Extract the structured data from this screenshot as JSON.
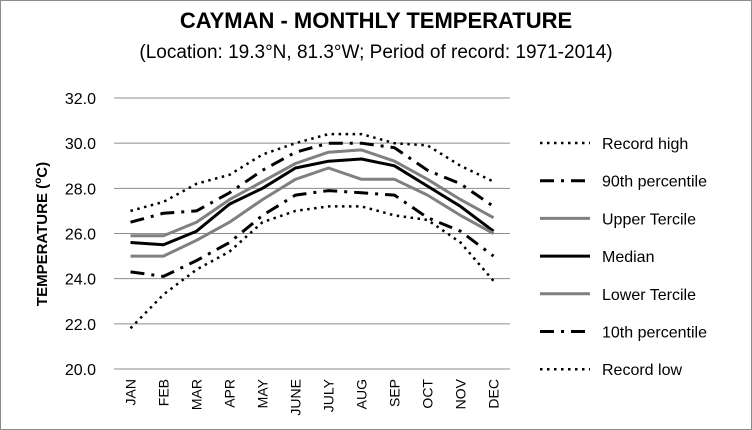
{
  "chart_data": {
    "type": "line",
    "title": "CAYMAN - MONTHLY TEMPERATURE",
    "subtitle": "(Location: 19.3°N, 81.3°W; Period of record: 1971-2014)",
    "xlabel": "",
    "ylabel": "TEMPERATURE (°C)",
    "ylim": [
      20,
      32
    ],
    "yticks": [
      "20.0",
      "22.0",
      "24.0",
      "26.0",
      "28.0",
      "30.0",
      "32.0"
    ],
    "grid": true,
    "legend_position": "right",
    "categories": [
      "JAN",
      "FEB",
      "MAR",
      "APR",
      "MAY",
      "JUNE",
      "JULY",
      "AUG",
      "SEP",
      "OCT",
      "NOV",
      "DEC"
    ],
    "series": [
      {
        "name": "Record high",
        "style": "dotted",
        "color": "#000000",
        "values": [
          27.0,
          27.4,
          28.2,
          28.6,
          29.5,
          30.0,
          30.4,
          30.4,
          30.0,
          29.9,
          29.0,
          28.3
        ]
      },
      {
        "name": "90th percentile",
        "style": "dashdot",
        "color": "#000000",
        "values": [
          26.5,
          26.9,
          27.0,
          27.8,
          28.8,
          29.6,
          30.0,
          30.0,
          29.8,
          28.8,
          28.2,
          27.2
        ]
      },
      {
        "name": "Upper Tercile",
        "style": "solid",
        "color": "#808080",
        "values": [
          25.9,
          25.9,
          26.5,
          27.5,
          28.3,
          29.1,
          29.6,
          29.7,
          29.2,
          28.4,
          27.5,
          26.7
        ]
      },
      {
        "name": "Median",
        "style": "solid",
        "color": "#000000",
        "values": [
          25.6,
          25.5,
          26.1,
          27.3,
          28.0,
          28.9,
          29.2,
          29.3,
          29.0,
          28.1,
          27.2,
          26.1
        ]
      },
      {
        "name": "Lower Tercile",
        "style": "solid",
        "color": "#808080",
        "values": [
          25.0,
          25.0,
          25.7,
          26.5,
          27.5,
          28.4,
          28.9,
          28.4,
          28.4,
          27.7,
          26.8,
          26.0
        ]
      },
      {
        "name": "10th percentile",
        "style": "dashdot",
        "color": "#000000",
        "values": [
          24.3,
          24.1,
          24.8,
          25.6,
          26.8,
          27.7,
          27.9,
          27.8,
          27.7,
          26.7,
          26.1,
          25.0
        ]
      },
      {
        "name": "Record low",
        "style": "dotted",
        "color": "#000000",
        "values": [
          21.8,
          23.3,
          24.4,
          25.2,
          26.5,
          27.0,
          27.2,
          27.2,
          26.8,
          26.6,
          25.6,
          23.9
        ]
      }
    ]
  }
}
